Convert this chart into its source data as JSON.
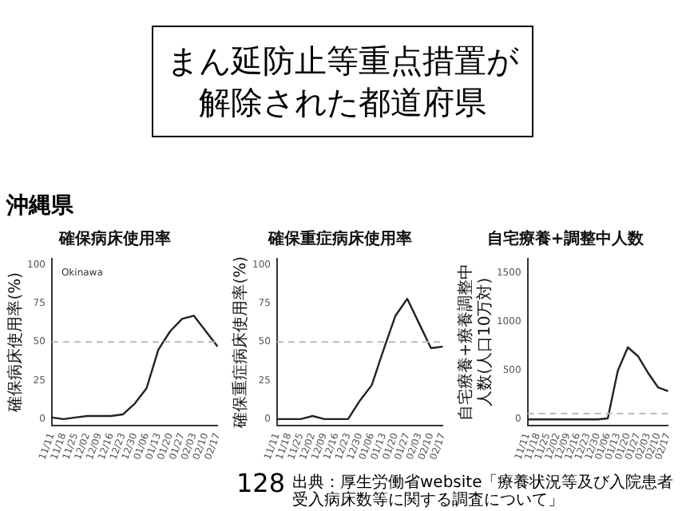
{
  "chart_data": [
    {
      "type": "other",
      "title": "まん延防止等重点措置が解除された都道府県",
      "annotations": [
        "沖縄県",
        "128",
        "出典：厚生労働省website「療養状況等及び入院患者受入病床数等に関する調査について」"
      ]
    },
    {
      "type": "line",
      "title": "確保病床使用率",
      "ylabel": "確保病床使用率(%)",
      "annotations": [
        "Okinawa"
      ],
      "categories": [
        "11/11",
        "11/18",
        "11/25",
        "12/02",
        "12/09",
        "12/16",
        "12/23",
        "12/30",
        "01/06",
        "01/13",
        "01/20",
        "01/27",
        "02/03",
        "02/10",
        "02/17"
      ],
      "values": [
        1,
        0,
        1,
        2,
        2,
        2,
        3,
        10,
        20,
        45,
        57,
        65,
        67,
        57,
        47
      ],
      "color": "#222222",
      "ylim": [
        -4,
        104
      ],
      "yticks": [
        0,
        25,
        50,
        75,
        100
      ],
      "ref_lines": [
        {
          "axis": "y",
          "value": 50,
          "color": "#bbbbbb",
          "line_style": "dashed"
        }
      ],
      "grid": false,
      "marker": "none"
    },
    {
      "type": "line",
      "title": "確保重症病床使用率",
      "ylabel": "確保重症病床使用率(%)",
      "categories": [
        "11/11",
        "11/18",
        "11/25",
        "12/02",
        "12/09",
        "12/16",
        "12/23",
        "12/30",
        "01/06",
        "01/13",
        "01/20",
        "01/27",
        "02/03",
        "02/10",
        "02/17"
      ],
      "values": [
        0,
        0,
        0,
        2,
        0,
        0,
        0,
        12,
        22,
        45,
        67,
        78,
        62,
        46,
        47
      ],
      "color": "#222222",
      "ylim": [
        -4,
        104
      ],
      "yticks": [
        0,
        25,
        50,
        75,
        100
      ],
      "ref_lines": [
        {
          "axis": "y",
          "value": 50,
          "color": "#bbbbbb",
          "line_style": "dashed"
        }
      ],
      "grid": false,
      "marker": "none"
    },
    {
      "type": "line",
      "title": "自宅療養+調整中人数",
      "ylabel": "自宅療養+療養調整中人数(人口10万対)",
      "categories": [
        "11/11",
        "11/18",
        "11/25",
        "12/02",
        "12/09",
        "12/16",
        "12/23",
        "12/30",
        "01/06",
        "01/13",
        "01/20",
        "01/27",
        "02/03",
        "02/10",
        "02/17"
      ],
      "values": [
        0,
        0,
        0,
        0,
        0,
        0,
        0,
        0,
        10,
        500,
        740,
        650,
        480,
        330,
        290
      ],
      "color": "#222222",
      "ylim": [
        -60,
        1650
      ],
      "yticks": [
        0,
        500,
        1000,
        1500
      ],
      "ref_lines": [
        {
          "axis": "y",
          "value": 60,
          "color": "#bbbbbb",
          "line_style": "dashed"
        }
      ],
      "grid": false,
      "marker": "none"
    }
  ]
}
